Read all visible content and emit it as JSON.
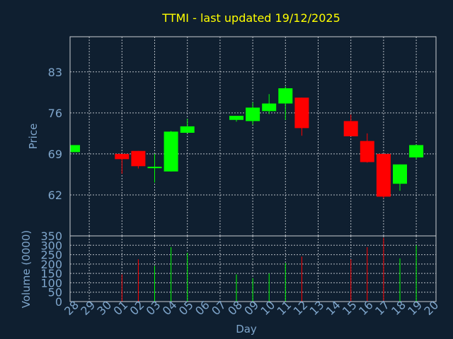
{
  "chart_data": [
    {
      "type": "candlestick",
      "title": "TTMI - last updated 19/12/2025",
      "ylabel": "Price",
      "ylim": [
        55,
        89
      ],
      "yticks": [
        62,
        69,
        76,
        83
      ],
      "grid": true,
      "up_color": "#00ff00",
      "down_color": "#ff0000",
      "candles": [
        {
          "day": "28",
          "open": 69.3,
          "high": 70.5,
          "low": 69.3,
          "close": 70.5
        },
        {
          "day": "01",
          "open": 69.0,
          "high": 69.0,
          "low": 65.6,
          "close": 68.1
        },
        {
          "day": "02",
          "open": 69.5,
          "high": 69.5,
          "low": 66.5,
          "close": 66.9
        },
        {
          "day": "03",
          "open": 66.6,
          "high": 69.0,
          "low": 64.1,
          "close": 66.8
        },
        {
          "day": "04",
          "open": 66.0,
          "high": 72.9,
          "low": 66.0,
          "close": 72.8
        },
        {
          "day": "05",
          "open": 72.6,
          "high": 75.0,
          "low": 72.6,
          "close": 73.7
        },
        {
          "day": "08",
          "open": 74.8,
          "high": 75.5,
          "low": 74.5,
          "close": 75.5
        },
        {
          "day": "09",
          "open": 74.6,
          "high": 77.8,
          "low": 74.0,
          "close": 76.9
        },
        {
          "day": "10",
          "open": 76.3,
          "high": 79.2,
          "low": 75.8,
          "close": 77.6
        },
        {
          "day": "11",
          "open": 77.6,
          "high": 80.5,
          "low": 74.8,
          "close": 80.2
        },
        {
          "day": "12",
          "open": 78.6,
          "high": 78.6,
          "low": 72.1,
          "close": 73.4
        },
        {
          "day": "15",
          "open": 74.6,
          "high": 75.7,
          "low": 72.0,
          "close": 72.0
        },
        {
          "day": "16",
          "open": 71.2,
          "high": 72.5,
          "low": 67.5,
          "close": 67.6
        },
        {
          "day": "17",
          "open": 69.0,
          "high": 69.0,
          "low": 61.4,
          "close": 61.7
        },
        {
          "day": "18",
          "open": 63.9,
          "high": 67.2,
          "low": 62.7,
          "close": 67.2
        },
        {
          "day": "19",
          "open": 68.4,
          "high": 70.6,
          "low": 68.1,
          "close": 70.5
        }
      ]
    },
    {
      "type": "bar",
      "ylabel": "Volume (0000)",
      "xlabel": "Day",
      "ylim": [
        0,
        350
      ],
      "yticks": [
        0,
        50,
        100,
        150,
        200,
        250,
        300,
        350
      ],
      "categories": [
        "28",
        "29",
        "30",
        "01",
        "02",
        "03",
        "04",
        "05",
        "06",
        "07",
        "08",
        "09",
        "10",
        "11",
        "12",
        "13",
        "14",
        "15",
        "16",
        "17",
        "18",
        "19",
        "20"
      ],
      "values": [
        {
          "day": "01",
          "value": 145,
          "color": "#ff0000"
        },
        {
          "day": "02",
          "value": 225,
          "color": "#ff0000"
        },
        {
          "day": "03",
          "value": 190,
          "color": "#00ff00"
        },
        {
          "day": "04",
          "value": 290,
          "color": "#00ff00"
        },
        {
          "day": "05",
          "value": 260,
          "color": "#00ff00"
        },
        {
          "day": "08",
          "value": 145,
          "color": "#00ff00"
        },
        {
          "day": "09",
          "value": 125,
          "color": "#00ff00"
        },
        {
          "day": "10",
          "value": 150,
          "color": "#00ff00"
        },
        {
          "day": "11",
          "value": 205,
          "color": "#00ff00"
        },
        {
          "day": "12",
          "value": 240,
          "color": "#ff0000"
        },
        {
          "day": "15",
          "value": 225,
          "color": "#ff0000"
        },
        {
          "day": "16",
          "value": 290,
          "color": "#ff0000"
        },
        {
          "day": "17",
          "value": 340,
          "color": "#ff0000"
        },
        {
          "day": "18",
          "value": 230,
          "color": "#00ff00"
        },
        {
          "day": "19",
          "value": 300,
          "color": "#00ff00"
        }
      ]
    }
  ]
}
